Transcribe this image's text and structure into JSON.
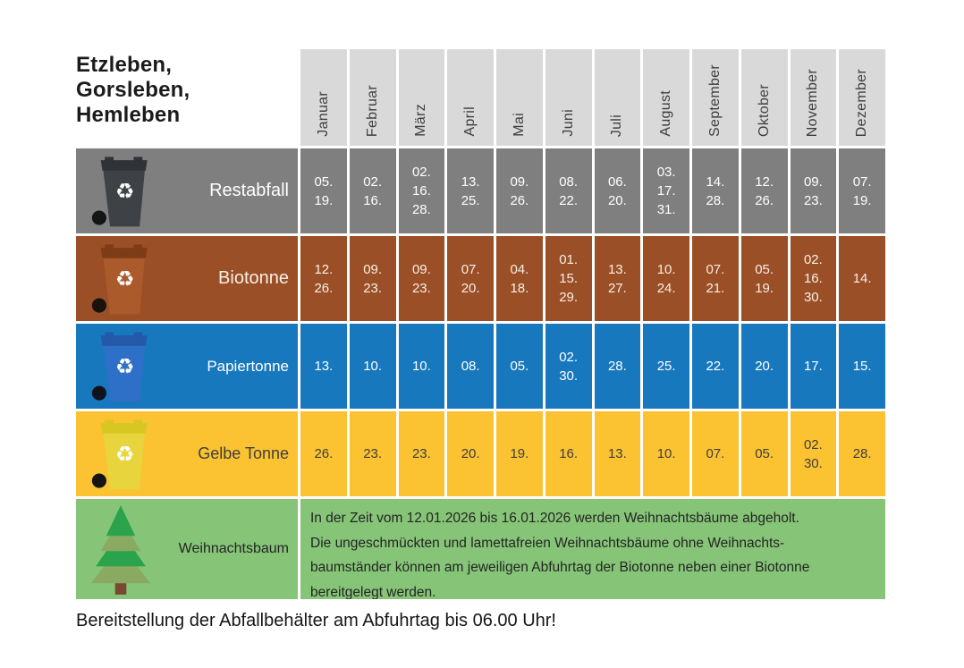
{
  "title": {
    "lines": [
      "Etzleben,",
      "Gorsleben,",
      "Hemleben"
    ]
  },
  "header": {
    "bg": "#d9d9d9",
    "text_color": "#3e3e3e"
  },
  "months": [
    "Januar",
    "Februar",
    "März",
    "April",
    "Mai",
    "Juni",
    "Juli",
    "August",
    "September",
    "Oktober",
    "November",
    "Dezember"
  ],
  "rows": [
    {
      "id": "restabfall",
      "label": "Restabfall",
      "bg": "#7f7f7f",
      "text_color": "#ffffff",
      "bin": {
        "body": "#3e4145",
        "lid": "#2f3236",
        "wheel": "#141517",
        "symbol": "#ffffff"
      },
      "dates": [
        [
          "05.",
          "19."
        ],
        [
          "02.",
          "16."
        ],
        [
          "02.",
          "16.",
          "28."
        ],
        [
          "13.",
          "25."
        ],
        [
          "09.",
          "26."
        ],
        [
          "08.",
          "22."
        ],
        [
          "06.",
          "20."
        ],
        [
          "03.",
          "17.",
          "31."
        ],
        [
          "14.",
          "28."
        ],
        [
          "12.",
          "26."
        ],
        [
          "09.",
          "23."
        ],
        [
          "07.",
          "19."
        ]
      ]
    },
    {
      "id": "biotonne",
      "label": "Biotonne",
      "bg": "#9b4f26",
      "text_color": "#f7efe7",
      "bin": {
        "body": "#ab5a2b",
        "lid": "#7e3c16",
        "wheel": "#1a120d",
        "symbol": "#ffffff"
      },
      "dates": [
        [
          "12.",
          "26."
        ],
        [
          "09.",
          "23."
        ],
        [
          "09.",
          "23."
        ],
        [
          "07.",
          "20."
        ],
        [
          "04.",
          "18."
        ],
        [
          "01.",
          "15.",
          "29."
        ],
        [
          "13.",
          "27."
        ],
        [
          "10.",
          "24."
        ],
        [
          "07.",
          "21."
        ],
        [
          "05.",
          "19."
        ],
        [
          "02.",
          "16.",
          "30."
        ],
        [
          "14."
        ]
      ]
    },
    {
      "id": "papiertonne",
      "label": "Papiertonne",
      "bg": "#1878be",
      "text_color": "#ffffff",
      "bin": {
        "body": "#2e6fc7",
        "lid": "#2459a9",
        "wheel": "#10131c",
        "symbol": "#ffffff"
      },
      "dates": [
        [
          "13."
        ],
        [
          "10."
        ],
        [
          "10."
        ],
        [
          "08."
        ],
        [
          "05."
        ],
        [
          "02.",
          "30."
        ],
        [
          "28."
        ],
        [
          "25."
        ],
        [
          "22."
        ],
        [
          "20."
        ],
        [
          "17."
        ],
        [
          "15."
        ]
      ]
    },
    {
      "id": "gelbe-tonne",
      "label": "Gelbe Tonne",
      "bg": "#fbc231",
      "text_color": "#3f3f3f",
      "bin": {
        "body": "#e8d43c",
        "lid": "#d8c723",
        "wheel": "#141414",
        "symbol": "#ffffff"
      },
      "dates": [
        [
          "26."
        ],
        [
          "23."
        ],
        [
          "23."
        ],
        [
          "20."
        ],
        [
          "19."
        ],
        [
          "16."
        ],
        [
          "13."
        ],
        [
          "10."
        ],
        [
          "07."
        ],
        [
          "05."
        ],
        [
          "02.",
          "30."
        ],
        [
          "28."
        ]
      ]
    }
  ],
  "tree_row": {
    "id": "weihnachtsbaum",
    "label": "Weihnachtsbaum",
    "bg": "#86c577",
    "text_color": "#242424",
    "tree": {
      "dark": "#2aa34c",
      "light": "#8aaa62",
      "trunk": "#7a4733"
    },
    "note_lines": [
      "In der Zeit vom 12.01.2026 bis 16.01.2026 werden Weihnachtsbäume abgeholt.",
      "Die ungeschmückten und lamettafreien Weihnachtsbäume ohne Weihnachts-",
      "baumständer können am jeweiligen Abfuhrtag der Biotonne neben einer Biotonne",
      "bereitgelegt werden."
    ]
  },
  "footer": "Bereitstellung der Abfallbehälter am Abfuhrtag bis 06.00 Uhr!"
}
